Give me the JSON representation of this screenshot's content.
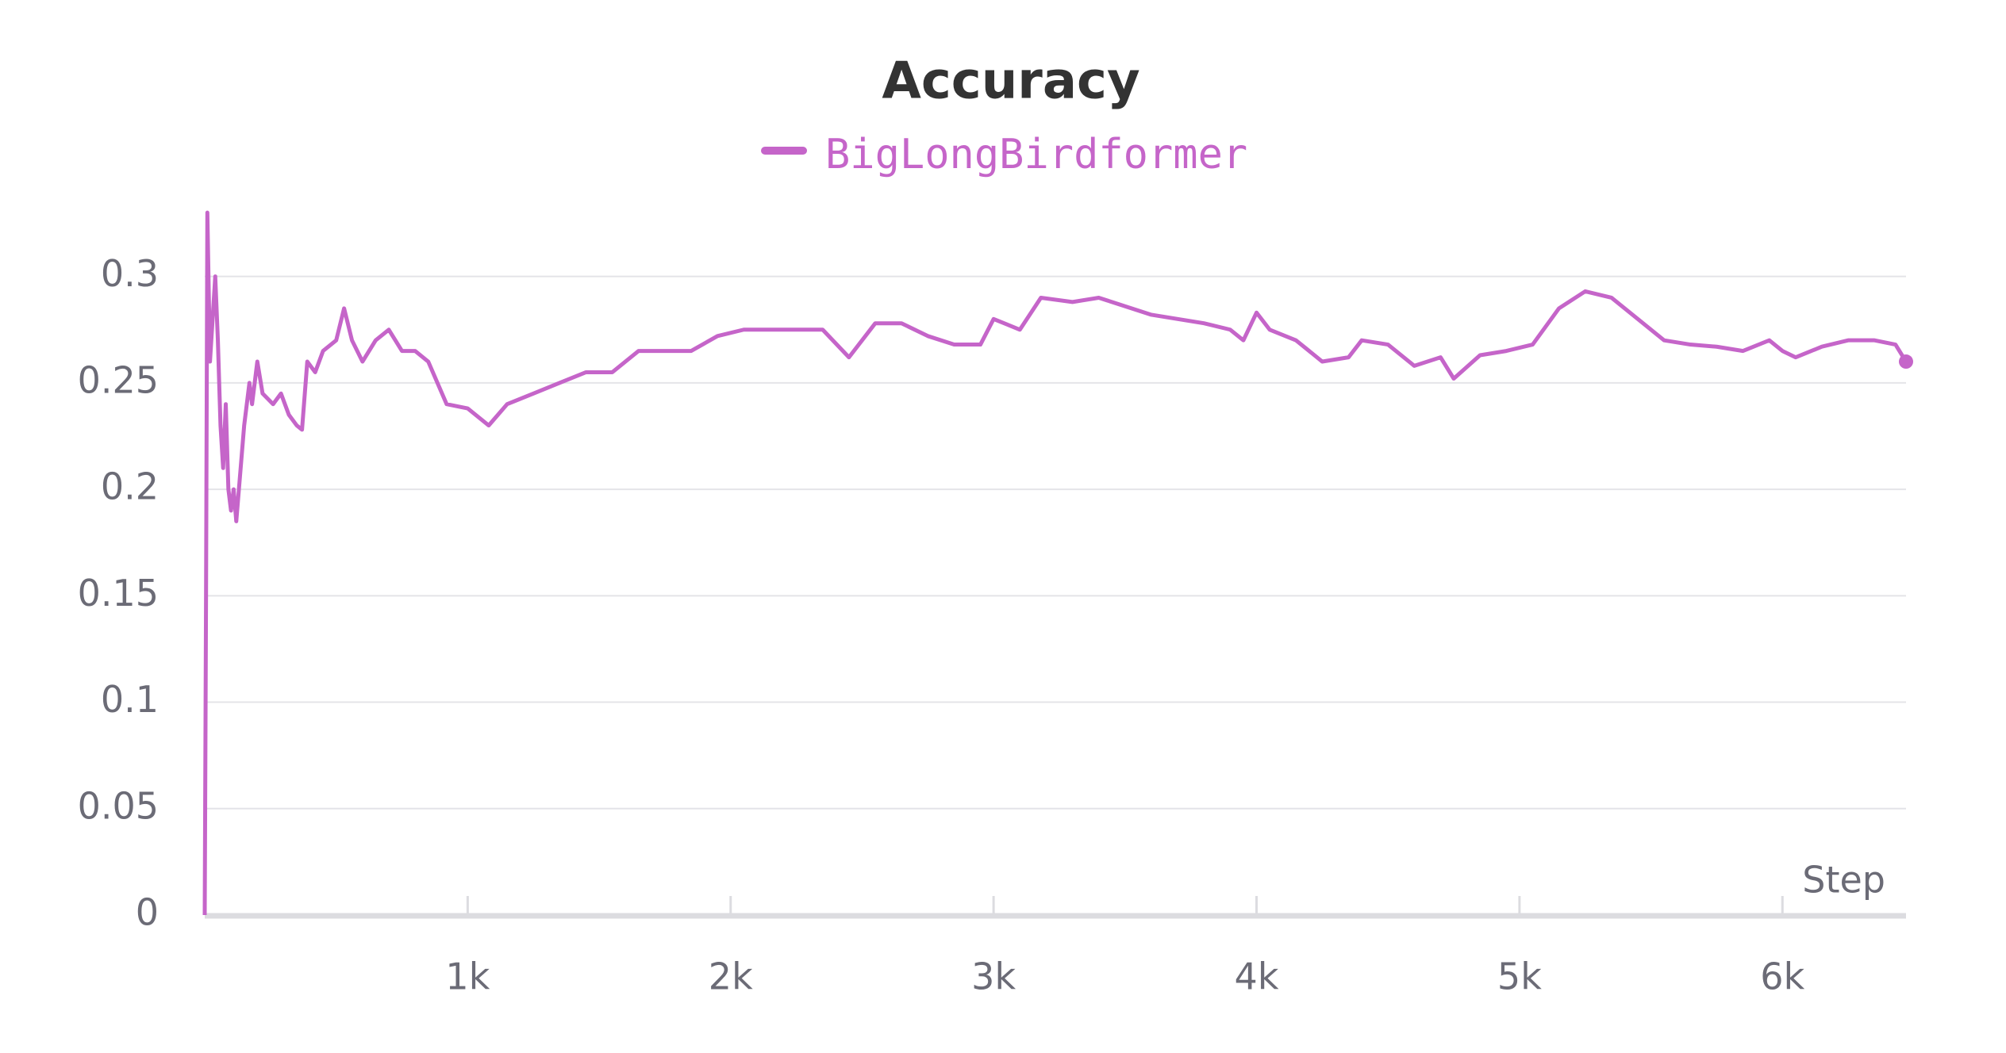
{
  "chart_data": {
    "type": "line",
    "title": "Accuracy",
    "xlabel": "Step",
    "x": [
      0,
      5,
      10,
      20,
      30,
      40,
      50,
      60,
      70,
      80,
      90,
      100,
      110,
      120,
      130,
      150,
      170,
      180,
      200,
      220,
      260,
      290,
      320,
      350,
      370,
      390,
      420,
      450,
      500,
      530,
      560,
      600,
      650,
      700,
      750,
      800,
      850,
      920,
      1000,
      1080,
      1150,
      1250,
      1350,
      1450,
      1550,
      1650,
      1750,
      1850,
      1950,
      2050,
      2200,
      2350,
      2450,
      2550,
      2650,
      2750,
      2850,
      2950,
      3000,
      3100,
      3180,
      3300,
      3400,
      3500,
      3600,
      3700,
      3800,
      3900,
      3950,
      4000,
      4050,
      4150,
      4250,
      4350,
      4400,
      4500,
      4600,
      4700,
      4750,
      4850,
      4950,
      5050,
      5150,
      5250,
      5350,
      5450,
      5550,
      5650,
      5750,
      5850,
      5950,
      6000,
      6050,
      6150,
      6250,
      6350,
      6430,
      6470
    ],
    "series": [
      {
        "name": "BigLongBirdformer",
        "color": "#c565c9",
        "values": [
          0,
          0.15,
          0.33,
          0.26,
          0.28,
          0.3,
          0.27,
          0.23,
          0.21,
          0.24,
          0.2,
          0.19,
          0.2,
          0.185,
          0.2,
          0.23,
          0.25,
          0.24,
          0.26,
          0.245,
          0.24,
          0.245,
          0.235,
          0.23,
          0.228,
          0.26,
          0.255,
          0.265,
          0.27,
          0.285,
          0.27,
          0.26,
          0.27,
          0.275,
          0.265,
          0.265,
          0.26,
          0.24,
          0.238,
          0.23,
          0.24,
          0.245,
          0.25,
          0.255,
          0.255,
          0.265,
          0.265,
          0.265,
          0.272,
          0.275,
          0.275,
          0.275,
          0.262,
          0.278,
          0.278,
          0.272,
          0.268,
          0.268,
          0.28,
          0.275,
          0.29,
          0.288,
          0.29,
          0.286,
          0.282,
          0.28,
          0.278,
          0.275,
          0.27,
          0.283,
          0.275,
          0.27,
          0.26,
          0.262,
          0.27,
          0.268,
          0.258,
          0.262,
          0.252,
          0.263,
          0.265,
          0.268,
          0.285,
          0.293,
          0.29,
          0.28,
          0.27,
          0.268,
          0.267,
          0.265,
          0.27,
          0.265,
          0.262,
          0.267,
          0.27,
          0.27,
          0.268,
          0.26
        ]
      }
    ],
    "xlim": [
      0,
      6470
    ],
    "xticks": [
      {
        "value": 1000,
        "label": "1k"
      },
      {
        "value": 2000,
        "label": "2k"
      },
      {
        "value": 3000,
        "label": "3k"
      },
      {
        "value": 4000,
        "label": "4k"
      },
      {
        "value": 5000,
        "label": "5k"
      },
      {
        "value": 6000,
        "label": "6k"
      }
    ],
    "ylim": [
      0,
      0.336
    ],
    "yticks": [
      0,
      0.05,
      0.1,
      0.15,
      0.2,
      0.25,
      0.3
    ],
    "grid": true
  }
}
